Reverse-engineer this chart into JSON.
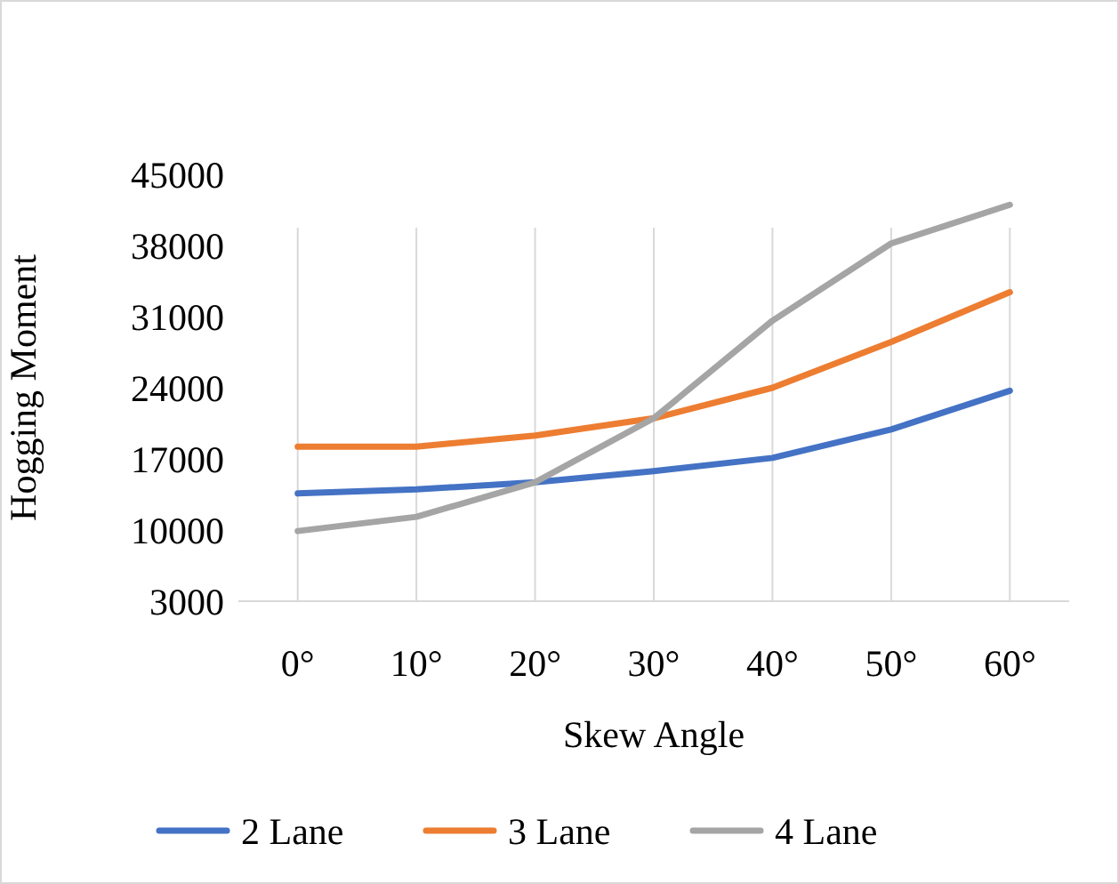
{
  "chart_data": {
    "type": "line",
    "xlabel": "Skew Angle",
    "ylabel": "Hogging Moment",
    "categories": [
      "0°",
      "10°",
      "20°",
      "30°",
      "40°",
      "50°",
      "60°"
    ],
    "series": [
      {
        "name": "2 Lane",
        "color": "#4472c4",
        "values": [
          13600,
          14000,
          14700,
          15800,
          17100,
          19900,
          23700
        ]
      },
      {
        "name": "3 Lane",
        "color": "#ed7d31",
        "values": [
          18200,
          18200,
          19300,
          21000,
          24000,
          28500,
          33400
        ]
      },
      {
        "name": "4 Lane",
        "color": "#a5a5a5",
        "values": [
          9900,
          11300,
          14700,
          21000,
          30600,
          38200,
          42000
        ]
      }
    ],
    "ylim": [
      3000,
      45000
    ],
    "yticks": [
      3000,
      10000,
      17000,
      24000,
      31000,
      38000,
      45000
    ],
    "grid": "x",
    "legend": "bottom",
    "marker": "none",
    "line_style": "solid"
  }
}
